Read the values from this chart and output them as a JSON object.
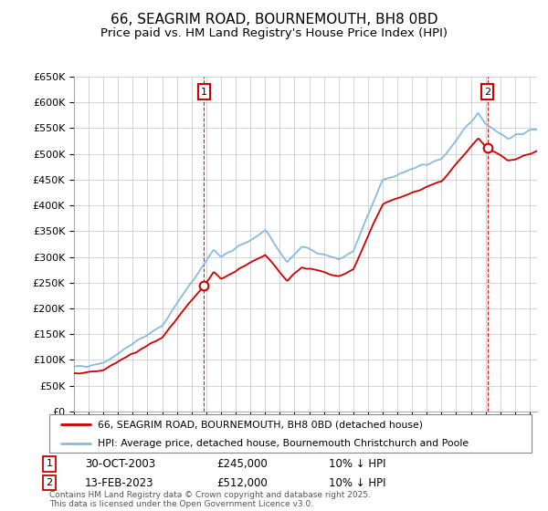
{
  "title": "66, SEAGRIM ROAD, BOURNEMOUTH, BH8 0BD",
  "subtitle": "Price paid vs. HM Land Registry's House Price Index (HPI)",
  "ylim": [
    0,
    650000
  ],
  "yticks": [
    0,
    50000,
    100000,
    150000,
    200000,
    250000,
    300000,
    350000,
    400000,
    450000,
    500000,
    550000,
    600000,
    650000
  ],
  "ytick_labels": [
    "£0",
    "£50K",
    "£100K",
    "£150K",
    "£200K",
    "£250K",
    "£300K",
    "£350K",
    "£400K",
    "£450K",
    "£500K",
    "£550K",
    "£600K",
    "£650K"
  ],
  "xlim_start": 1995.0,
  "xlim_end": 2026.5,
  "transaction1_x": 2003.83,
  "transaction1_y": 245000,
  "transaction1_label": "1",
  "transaction2_x": 2023.12,
  "transaction2_y": 512000,
  "transaction2_label": "2",
  "line_color_red": "#cc0000",
  "line_color_blue": "#88bbdd",
  "marker_box_color": "#cc0000",
  "grid_color": "#cccccc",
  "background_color": "#ffffff",
  "legend_label_red": "66, SEAGRIM ROAD, BOURNEMOUTH, BH8 0BD (detached house)",
  "legend_label_blue": "HPI: Average price, detached house, Bournemouth Christchurch and Poole",
  "annotation1_date": "30-OCT-2003",
  "annotation1_price": "£245,000",
  "annotation1_hpi": "10% ↓ HPI",
  "annotation2_date": "13-FEB-2023",
  "annotation2_price": "£512,000",
  "annotation2_hpi": "10% ↓ HPI",
  "footer_text": "Contains HM Land Registry data © Crown copyright and database right 2025.\nThis data is licensed under the Open Government Licence v3.0.",
  "title_fontsize": 11,
  "subtitle_fontsize": 9.5
}
